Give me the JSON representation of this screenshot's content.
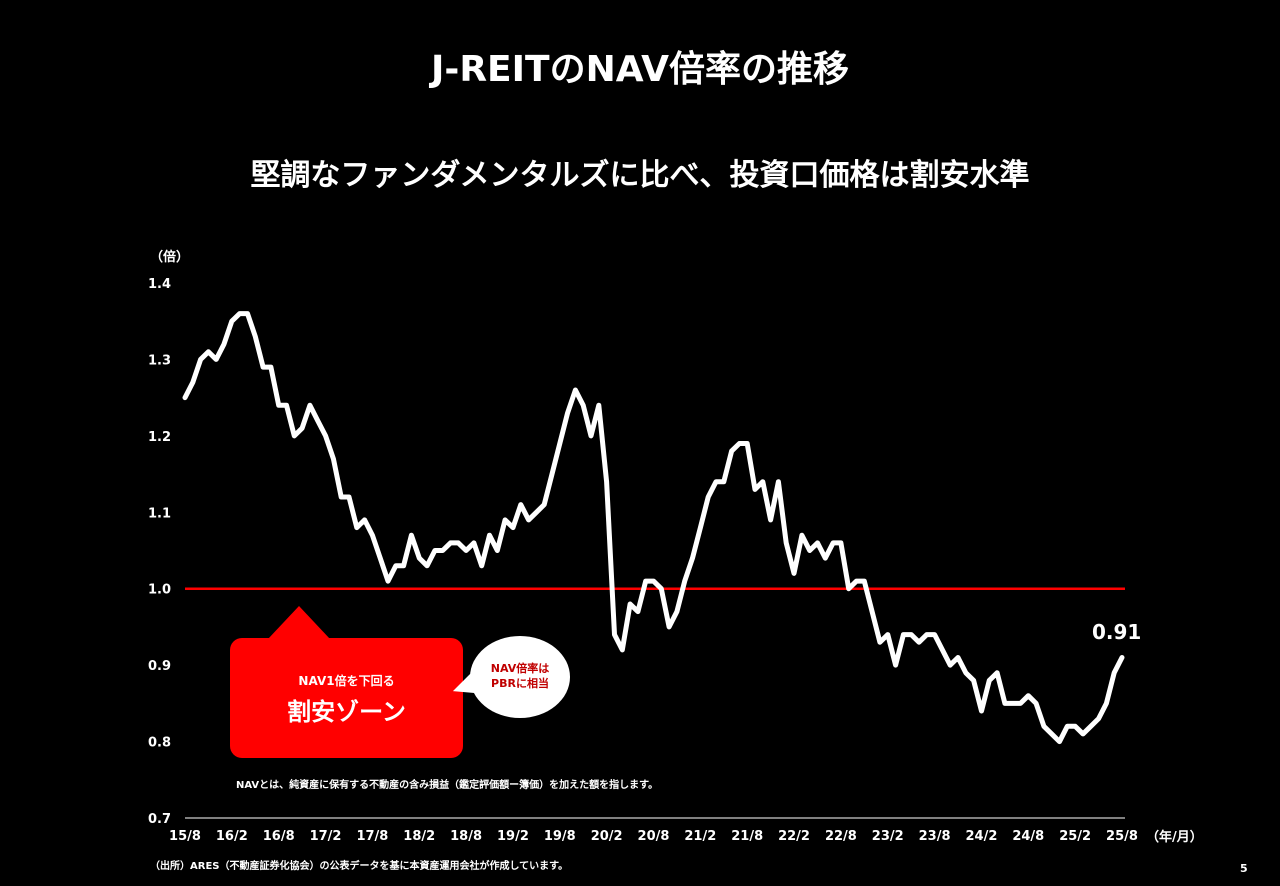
{
  "slide": {
    "title": "J-REITのNAV倍率の推移",
    "subtitle": "堅調なファンダメンタルズに比べ、投資口価格は割安水準",
    "y_unit": "（倍）",
    "x_unit": "（年/月）",
    "nav_note": "NAVとは、純資産に保有する不動産の含み損益（鑑定評価額ー簿価）を加えた額を指します。",
    "source": "（出所）ARES（不動産証券化協会）の公表データを基に本資産運用会社が作成しています。",
    "page_number": "5",
    "zone_small": "NAV1倍を下回る",
    "zone_big": "割安ゾーン",
    "bubble_text": "NAV倍率は\nPBRに相当",
    "last_value_label": "0.91"
  },
  "colors": {
    "background": "#000000",
    "line": "#ffffff",
    "reference": "#ff0000",
    "accent_text": "#c00000"
  },
  "chart_data": {
    "type": "line",
    "title": "J-REITのNAV倍率の推移",
    "ylabel": "（倍）",
    "xlabel": "（年/月）",
    "ylim": [
      0.7,
      1.4
    ],
    "yticks": [
      "1.4",
      "1.3",
      "1.2",
      "1.1",
      "1.0",
      "0.9",
      "0.8",
      "0.7"
    ],
    "yticks_values": [
      1.4,
      1.3,
      1.2,
      1.1,
      1.0,
      0.9,
      0.8,
      0.7
    ],
    "xticks": [
      "15/8",
      "16/2",
      "16/8",
      "17/2",
      "17/8",
      "18/2",
      "18/8",
      "19/2",
      "19/8",
      "20/2",
      "20/8",
      "21/2",
      "21/8",
      "22/2",
      "22/8",
      "23/2",
      "23/8",
      "24/2",
      "24/8",
      "25/2",
      "25/8"
    ],
    "reference_line": 1.0,
    "start": "2015/8",
    "end": "2025/8",
    "values": [
      1.25,
      1.27,
      1.3,
      1.31,
      1.3,
      1.32,
      1.35,
      1.36,
      1.36,
      1.33,
      1.29,
      1.29,
      1.24,
      1.24,
      1.2,
      1.21,
      1.24,
      1.22,
      1.2,
      1.17,
      1.12,
      1.12,
      1.08,
      1.09,
      1.07,
      1.04,
      1.01,
      1.03,
      1.03,
      1.07,
      1.04,
      1.03,
      1.05,
      1.05,
      1.06,
      1.06,
      1.05,
      1.06,
      1.03,
      1.07,
      1.05,
      1.09,
      1.08,
      1.11,
      1.09,
      1.1,
      1.11,
      1.15,
      1.19,
      1.23,
      1.26,
      1.24,
      1.2,
      1.24,
      1.14,
      0.94,
      0.92,
      0.98,
      0.97,
      1.01,
      1.01,
      1.0,
      0.95,
      0.97,
      1.01,
      1.04,
      1.08,
      1.12,
      1.14,
      1.14,
      1.18,
      1.19,
      1.19,
      1.13,
      1.14,
      1.09,
      1.14,
      1.06,
      1.02,
      1.07,
      1.05,
      1.06,
      1.04,
      1.06,
      1.06,
      1.0,
      1.01,
      1.01,
      0.97,
      0.93,
      0.94,
      0.9,
      0.94,
      0.94,
      0.93,
      0.94,
      0.94,
      0.92,
      0.9,
      0.91,
      0.89,
      0.88,
      0.84,
      0.88,
      0.89,
      0.85,
      0.85,
      0.85,
      0.86,
      0.85,
      0.82,
      0.81,
      0.8,
      0.82,
      0.82,
      0.81,
      0.82,
      0.83,
      0.85,
      0.89,
      0.91
    ],
    "last_value": 0.91,
    "grid": false,
    "legend": "none"
  }
}
